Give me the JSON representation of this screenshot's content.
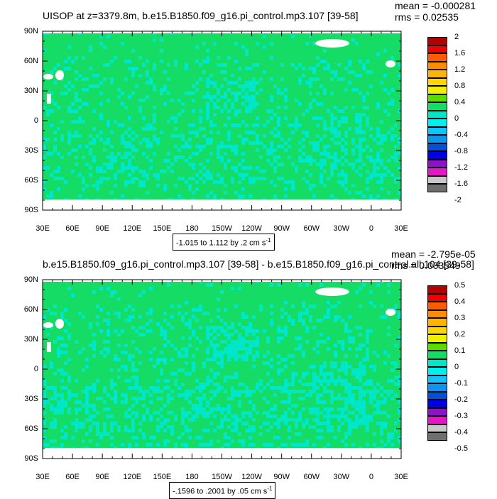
{
  "palette": [
    "#6e6e6e",
    "#c8c8c8",
    "#e616c8",
    "#8c14c8",
    "#0000e6",
    "#0050dc",
    "#0a96f0",
    "#12c3ff",
    "#00f0f0",
    "#00e6c8",
    "#14dc64",
    "#5adc00",
    "#f0f000",
    "#ffd700",
    "#ffb400",
    "#ff8c00",
    "#ff5a00",
    "#f00000",
    "#b40000"
  ],
  "lat_labels": [
    "90N",
    "60N",
    "30N",
    "0",
    "30S",
    "60S",
    "90S"
  ],
  "lon_labels": [
    "30E",
    "60E",
    "90E",
    "120E",
    "150E",
    "180",
    "150W",
    "120W",
    "90W",
    "60W",
    "30W",
    "0",
    "30E"
  ],
  "panels": [
    {
      "title": "UISOP at z=3379.8m, b.e15.B1850.f09_g16.pi_control.mp3.107 [39-58]",
      "mean": "mean = -0.000281",
      "rms": "rms = 0.02535",
      "range_prefix": "-1.015 to 1.112 by .2 cm s",
      "range_sup": "-1",
      "colorbar_labels": [
        "2",
        "1.6",
        "1.2",
        "0.8",
        "0.4",
        "0",
        "-0.4",
        "-0.8",
        "-1.2",
        "-1.6",
        "-2"
      ]
    },
    {
      "title": "b.e15.B1850.f09_g16.pi_control.mp3.107 [39-58] - b.e15.B1850.f09_g16.pi_control.all.104 [39-58]",
      "mean": "mean = -2.795e-05",
      "rms": "rms = 0.003549",
      "range_prefix": "-.1596 to .2001 by .05 cm s",
      "range_sup": "-1",
      "colorbar_labels": [
        "0.5",
        "0.4",
        "0.3",
        "0.2",
        "0.1",
        "0",
        "-0.1",
        "-0.2",
        "-0.3",
        "-0.4",
        "-0.5"
      ]
    }
  ]
}
